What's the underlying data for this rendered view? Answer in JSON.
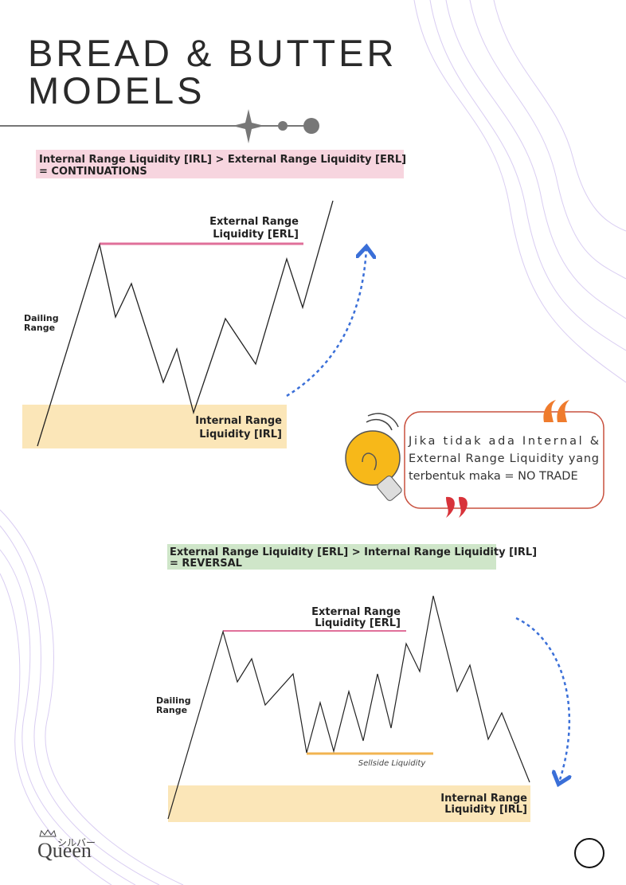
{
  "header": {
    "title_lines": [
      "BREAD & BUTTER",
      "MODELS"
    ]
  },
  "continuation": {
    "banner_lines": [
      "Internal Range Liquidity [IRL] > External Range Liquidity [ERL]",
      "= CONTINUATIONS"
    ],
    "erl_label": [
      "External Range",
      "Liquidity [ERL]"
    ],
    "range_label": [
      "Dailing",
      "Range"
    ],
    "irl_label": [
      "Internal Range",
      "Liquidity [IRL]"
    ]
  },
  "note": {
    "lines": [
      "Jika tidak ada Internal &",
      "External Range Liquidity yang",
      "terbentuk maka = NO TRADE"
    ]
  },
  "reversal": {
    "banner_lines": [
      "External Range Liquidity [ERL] > Internal Range Liquidity [IRL]",
      "= REVERSAL"
    ],
    "erl_label": [
      "External Range",
      "Liquidity [ERL]"
    ],
    "range_label": [
      "Dailing",
      "Range"
    ],
    "sellside_label": "Sellside Liquidity",
    "irl_label": [
      "Internal Range",
      "Liquidity [IRL]"
    ]
  },
  "logo": {
    "kana": "シルバー",
    "name": "Queen"
  }
}
